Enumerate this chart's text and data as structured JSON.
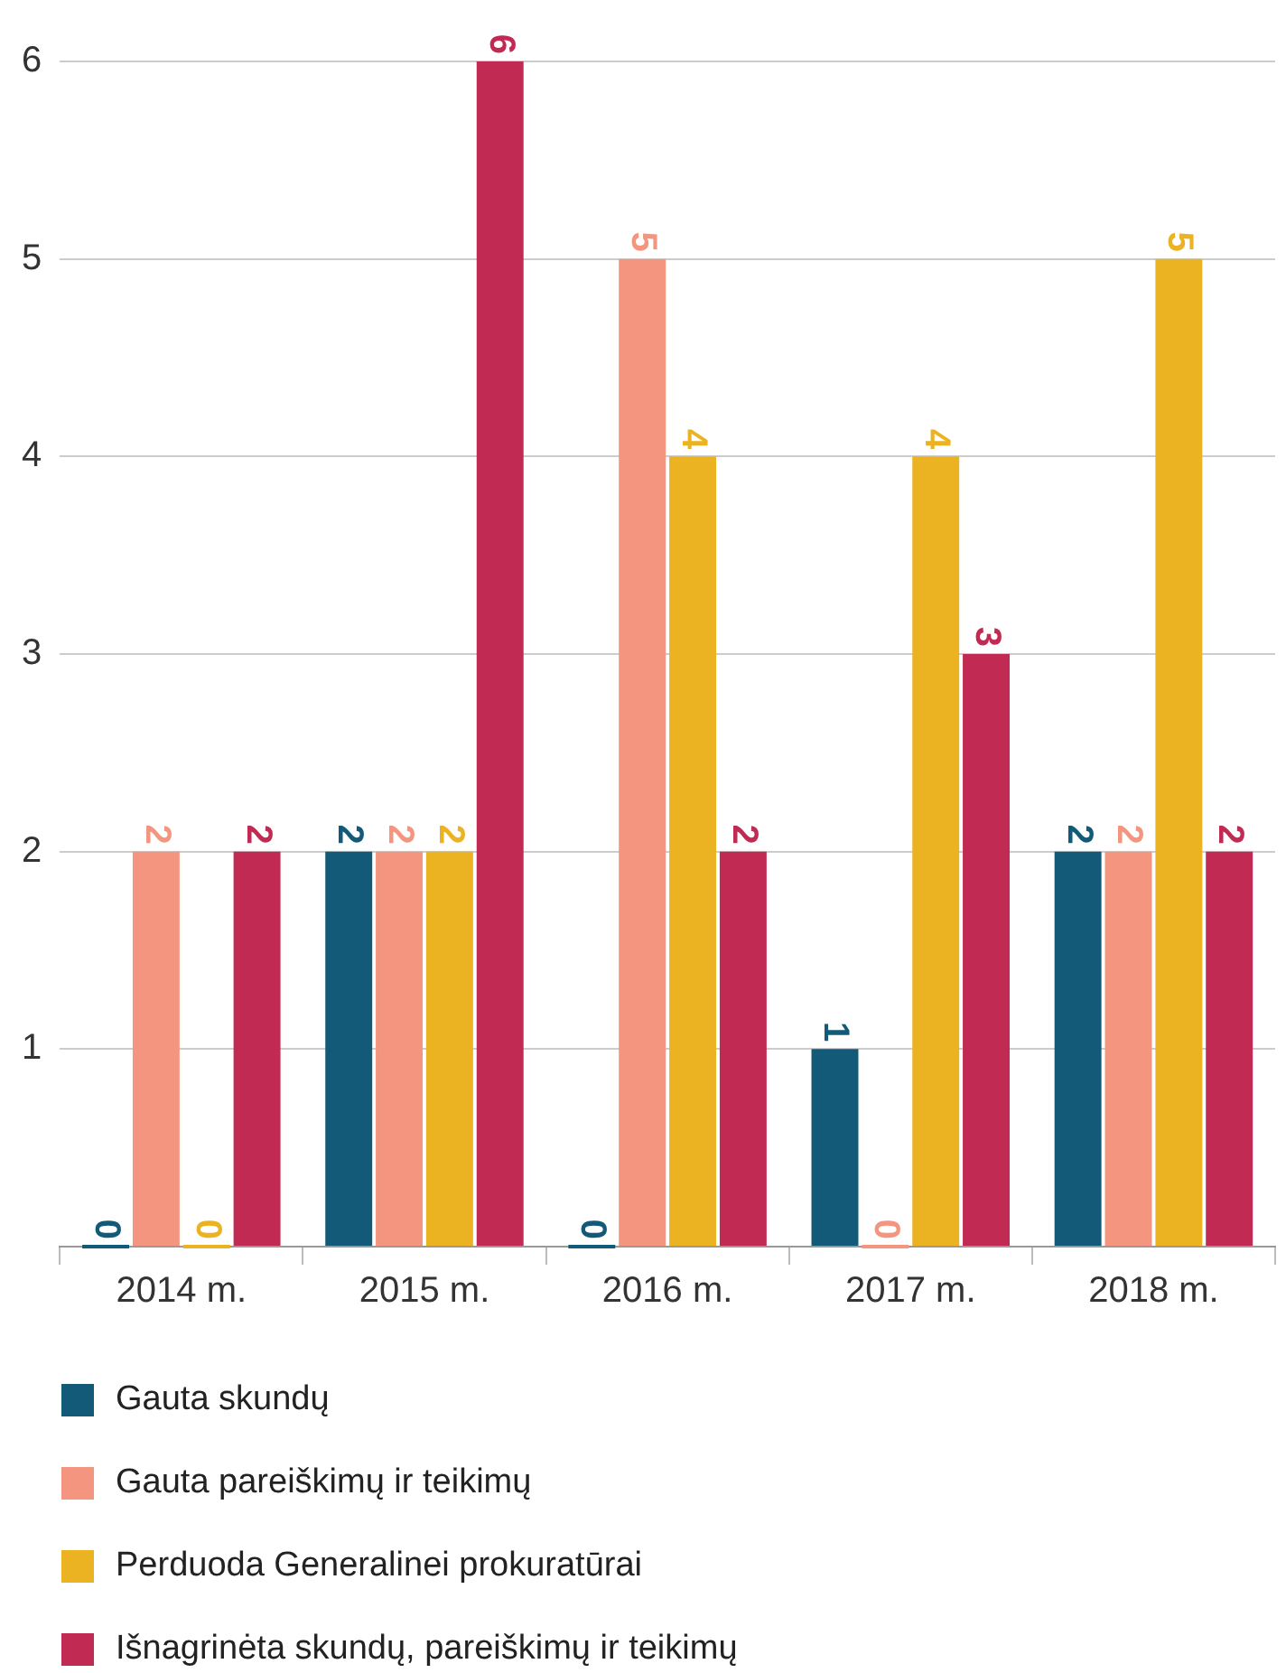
{
  "chart_data": {
    "type": "bar",
    "categories": [
      "2014 m.",
      "2015 m.",
      "2016 m.",
      "2017 m.",
      "2018 m."
    ],
    "series": [
      {
        "name": "Gauta skundų",
        "color": "#135a78",
        "values": [
          0,
          2,
          0,
          1,
          2
        ]
      },
      {
        "name": "Gauta pareiškimų ir teikimų",
        "color": "#f4957f",
        "values": [
          2,
          2,
          5,
          0,
          2
        ]
      },
      {
        "name": "Perduoda Generalinei prokuratūrai",
        "color": "#ebb321",
        "values": [
          0,
          2,
          4,
          4,
          5
        ]
      },
      {
        "name": "Išnagrinėta skundų, pareiškimų ir teikimų",
        "color": "#c12a52",
        "values": [
          2,
          6,
          2,
          3,
          2
        ]
      }
    ],
    "ylim": [
      0,
      6
    ],
    "yticks": [
      {
        "value": 0,
        "label": null
      },
      1,
      2,
      3,
      4,
      5,
      6
    ],
    "grid": "y",
    "legend": "bottom",
    "data_labels": true
  }
}
